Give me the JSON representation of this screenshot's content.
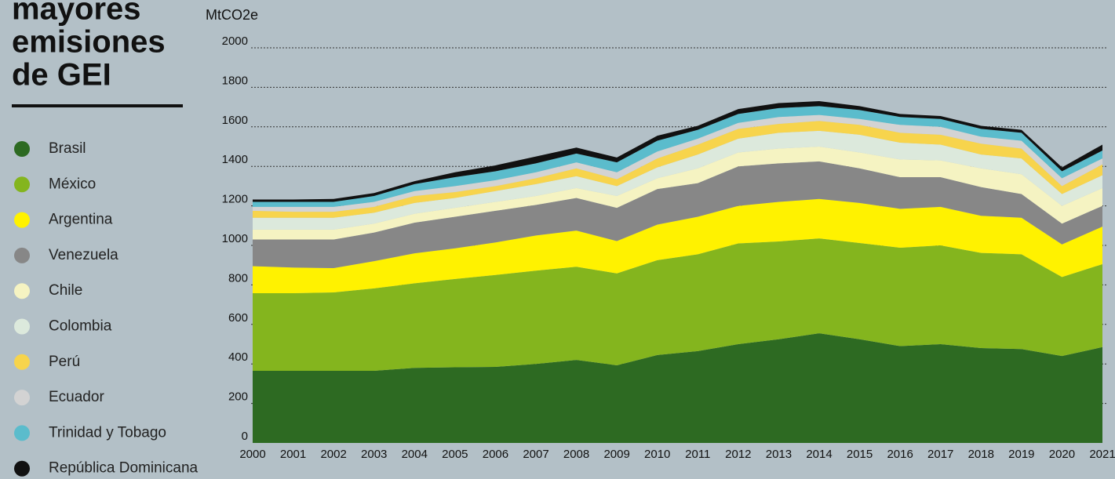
{
  "chart_data": {
    "type": "stacked_area",
    "title": [
      "mayores",
      "emisiones",
      "de GEI"
    ],
    "y_label": "MtCO2e",
    "x": [
      2000,
      2001,
      2002,
      2003,
      2004,
      2005,
      2006,
      2007,
      2008,
      2009,
      2010,
      2011,
      2012,
      2013,
      2014,
      2015,
      2016,
      2017,
      2018,
      2019,
      2020,
      2021
    ],
    "xlim": [
      2000,
      2021
    ],
    "ylim": [
      0,
      2000
    ],
    "yticks": [
      0,
      200,
      400,
      600,
      800,
      1000,
      1200,
      1400,
      1600,
      1800,
      2000
    ],
    "grid": true,
    "series": [
      {
        "name": "Brasil",
        "color": "#2d6a22",
        "values": [
          365,
          365,
          365,
          365,
          380,
          383,
          385,
          400,
          420,
          393,
          445,
          465,
          500,
          525,
          555,
          525,
          490,
          500,
          480,
          475,
          440,
          485
        ]
      },
      {
        "name": "México",
        "color": "#84b51e",
        "values": [
          393,
          393,
          397,
          417,
          428,
          447,
          465,
          472,
          472,
          465,
          480,
          490,
          510,
          495,
          480,
          487,
          498,
          500,
          482,
          480,
          400,
          420
        ]
      },
      {
        "name": "Argentina",
        "color": "#fff200",
        "values": [
          137,
          130,
          123,
          138,
          152,
          155,
          165,
          178,
          183,
          164,
          180,
          190,
          190,
          200,
          200,
          203,
          197,
          195,
          188,
          185,
          165,
          190
        ]
      },
      {
        "name": "Venezuela",
        "color": "#878787",
        "values": [
          135,
          142,
          145,
          145,
          155,
          160,
          160,
          155,
          165,
          168,
          180,
          170,
          200,
          195,
          190,
          175,
          160,
          150,
          145,
          120,
          105,
          105
        ]
      },
      {
        "name": "Chile",
        "color": "#f5f3c2",
        "values": [
          50,
          50,
          50,
          45,
          45,
          45,
          45,
          45,
          50,
          60,
          55,
          75,
          70,
          75,
          75,
          80,
          90,
          85,
          95,
          100,
          90,
          90
        ]
      },
      {
        "name": "Colombia",
        "color": "#dce9dc",
        "values": [
          60,
          60,
          60,
          55,
          55,
          50,
          55,
          60,
          60,
          50,
          55,
          70,
          70,
          80,
          80,
          90,
          85,
          80,
          70,
          80,
          60,
          65
        ]
      },
      {
        "name": "Perú",
        "color": "#f7d44c",
        "values": [
          35,
          30,
          30,
          30,
          35,
          30,
          25,
          30,
          40,
          35,
          45,
          50,
          50,
          45,
          50,
          50,
          50,
          50,
          55,
          50,
          40,
          55
        ]
      },
      {
        "name": "Ecuador",
        "color": "#d3d3d3",
        "values": [
          20,
          25,
          25,
          25,
          25,
          30,
          30,
          30,
          30,
          35,
          35,
          30,
          30,
          35,
          30,
          30,
          40,
          40,
          35,
          40,
          40,
          30
        ]
      },
      {
        "name": "Trinidad y Tobago",
        "color": "#5bbccc",
        "values": [
          25,
          25,
          25,
          30,
          35,
          45,
          45,
          45,
          45,
          50,
          55,
          45,
          45,
          45,
          45,
          45,
          40,
          40,
          40,
          40,
          35,
          40
        ]
      },
      {
        "name": "República Dominicana",
        "color": "#111111",
        "values": [
          12,
          12,
          15,
          15,
          15,
          25,
          30,
          35,
          30,
          25,
          25,
          20,
          25,
          25,
          25,
          20,
          15,
          15,
          15,
          15,
          20,
          30
        ]
      }
    ]
  }
}
